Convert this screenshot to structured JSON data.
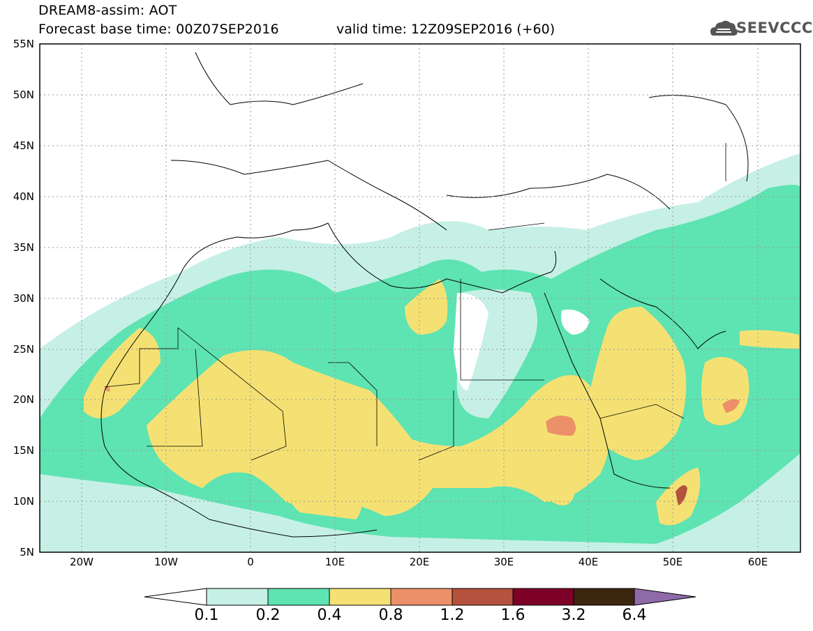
{
  "header": {
    "title": "DREAM8-assim: AOT",
    "base_time": "Forecast base time: 00Z07SEP2016",
    "valid_time": "valid time: 12Z09SEP2016 (+60)",
    "logo_text": "SEEVCCC"
  },
  "map": {
    "lat_labels": [
      "55N",
      "50N",
      "45N",
      "40N",
      "35N",
      "30N",
      "25N",
      "20N",
      "15N",
      "10N",
      "5N"
    ],
    "lon_labels": [
      "20W",
      "10W",
      "0",
      "10E",
      "20E",
      "30E",
      "40E",
      "50E",
      "60E"
    ],
    "lat_range": [
      5,
      55
    ],
    "lon_range": [
      -25,
      65
    ],
    "grid": "dotted"
  },
  "legend": {
    "levels": [
      "0.1",
      "0.2",
      "0.4",
      "0.8",
      "1.2",
      "1.6",
      "3.2",
      "6.4"
    ],
    "colors": [
      "#ffffff",
      "#c6f0e6",
      "#5ee3b2",
      "#f5e173",
      "#eb9068",
      "#b4523e",
      "#7d0028",
      "#3d2610",
      "#8e6aa8"
    ]
  }
}
